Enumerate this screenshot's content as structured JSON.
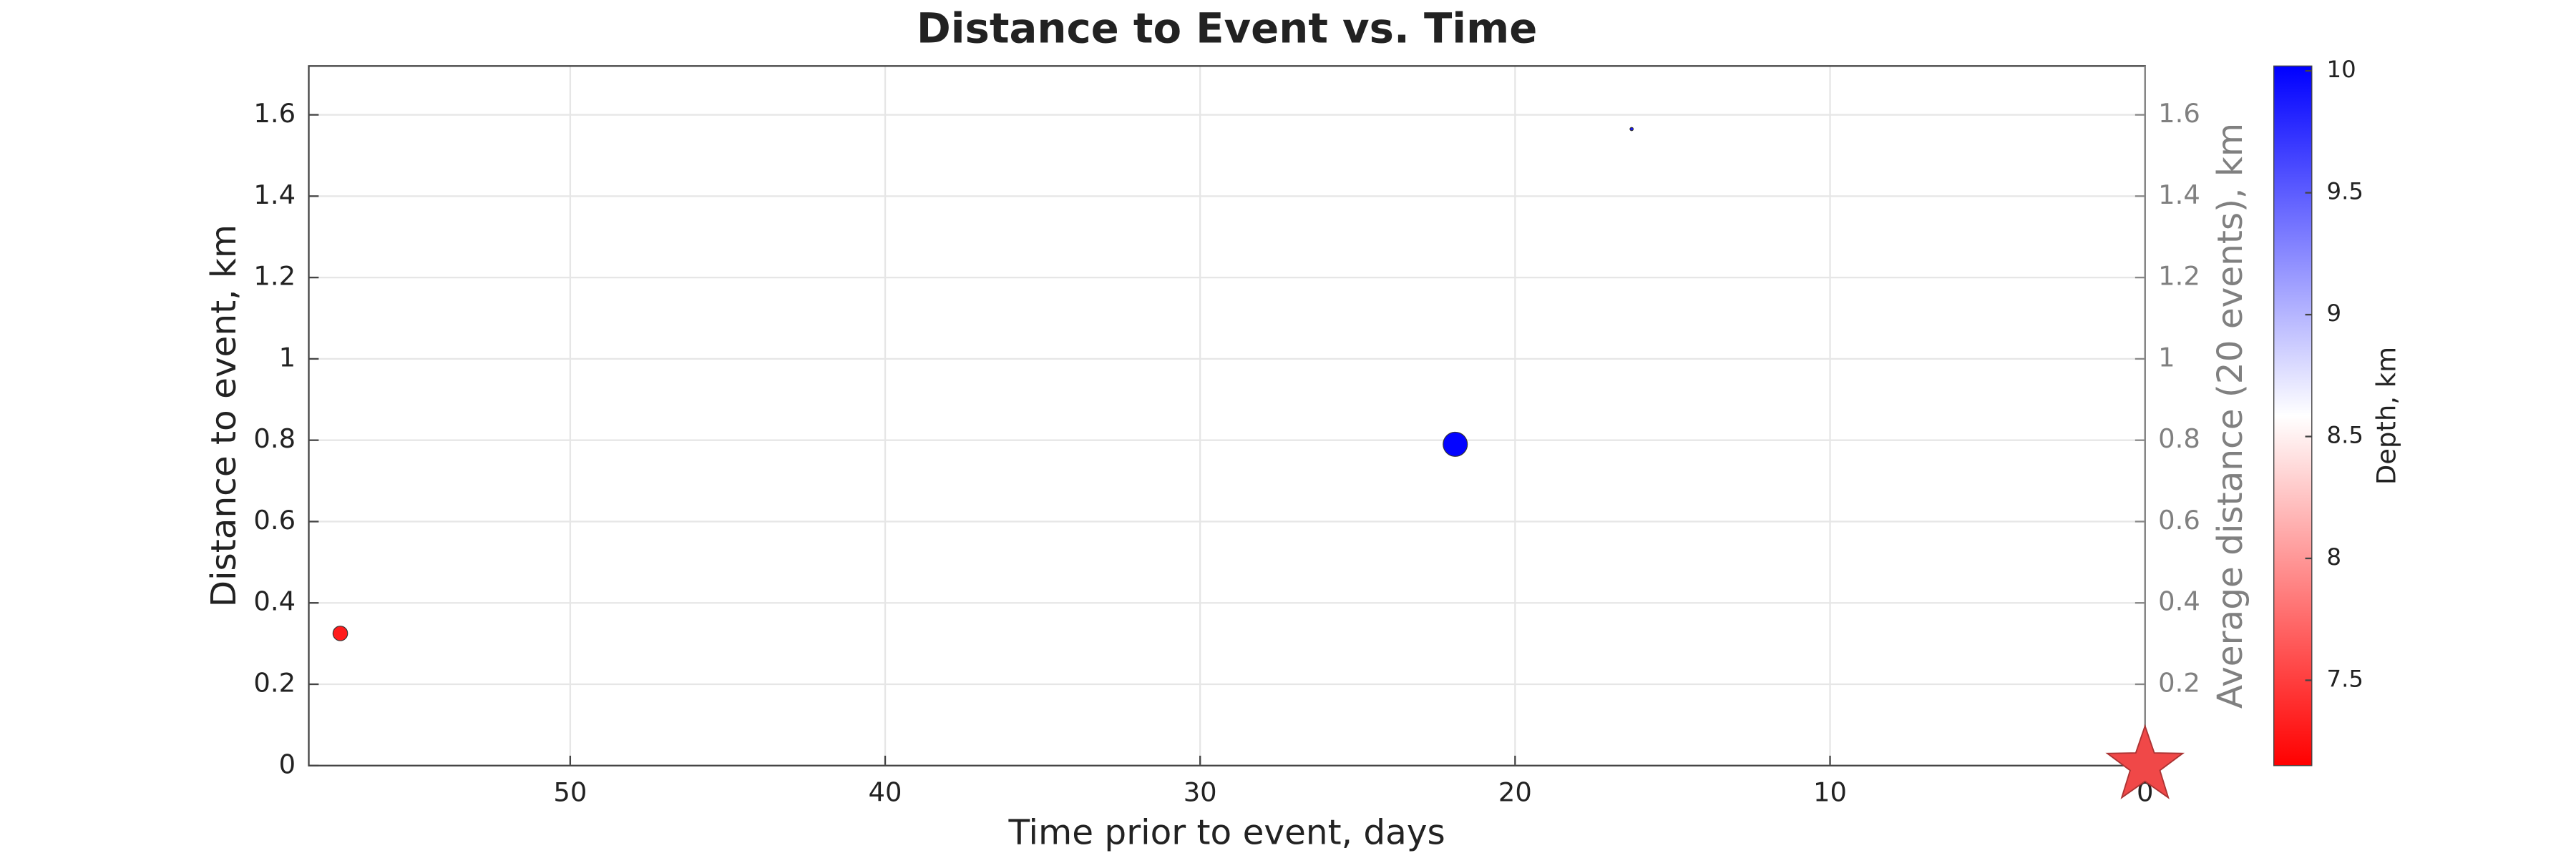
{
  "chart_data": {
    "type": "scatter",
    "title": "Distance to Event vs. Time",
    "x_label": "Time prior to event, days",
    "y_label": "Distance to event, km",
    "y2_label": "Average distance (20 events), km",
    "colorbar_label": "Depth, km",
    "xlim": [
      58.3,
      0
    ],
    "xticks": [
      50,
      40,
      30,
      20,
      10,
      0
    ],
    "ylim": [
      0,
      1.72
    ],
    "yticks": [
      0,
      0.2,
      0.4,
      0.6,
      0.8,
      1,
      1.2,
      1.4,
      1.6
    ],
    "y2lim": [
      0,
      1.72
    ],
    "y2ticks": [
      0.2,
      0.4,
      0.6,
      0.8,
      1,
      1.2,
      1.4,
      1.6
    ],
    "grid": true,
    "x": [
      57.3,
      21.9,
      16.3
    ],
    "values": [
      0.325,
      0.79,
      1.565
    ],
    "depth": [
      7.3,
      10,
      9.9
    ],
    "sizes": [
      40,
      110,
      2
    ],
    "mainshock": {
      "x": 0,
      "y": 0,
      "color": "#f04848"
    },
    "clim": [
      7.15,
      10.02
    ],
    "cticks": [
      7.5,
      8,
      8.5,
      9,
      9.5,
      10
    ],
    "colormap": [
      "#ff0000",
      "#ffffff",
      "#0000ff"
    ]
  }
}
